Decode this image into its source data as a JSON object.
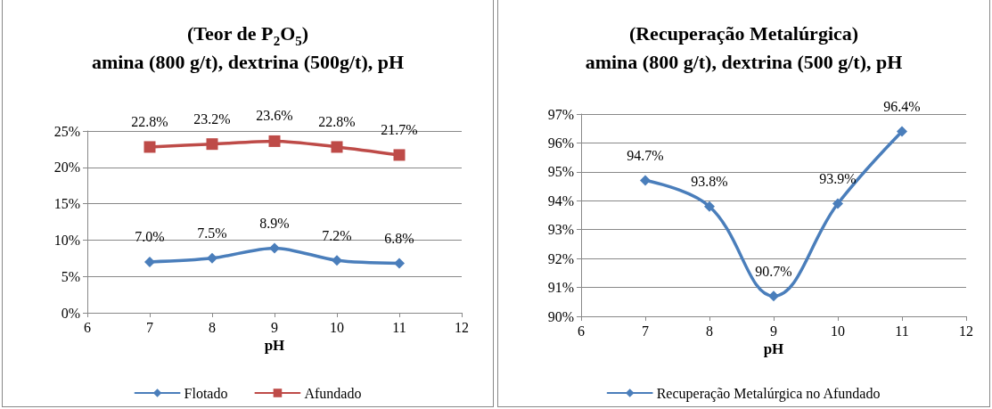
{
  "chart_data": [
    {
      "type": "line",
      "title": "(Teor de P$_{2}$O$_{5}$)\namina (800 g/t), dextrina (500g/t), pH",
      "xlabel": "pH",
      "x": [
        7,
        8,
        9,
        10,
        11
      ],
      "series": [
        {
          "name": "Flotado",
          "color": "#4a7ebb",
          "marker": "diamond",
          "values": [
            7.0,
            7.5,
            8.9,
            7.2,
            6.8
          ],
          "value_labels": [
            "7.0%",
            "7.5%",
            "8.9%",
            "7.2%",
            "6.8%"
          ]
        },
        {
          "name": "Afundado",
          "color": "#be4b48",
          "marker": "square",
          "values": [
            22.8,
            23.2,
            23.6,
            22.8,
            21.7
          ],
          "value_labels": [
            "22.8%",
            "23.2%",
            "23.6%",
            "22.8%",
            "21.7%"
          ]
        }
      ],
      "xlim": [
        6,
        12
      ],
      "xticks": [
        6,
        7,
        8,
        9,
        10,
        11,
        12
      ],
      "ylim": [
        0,
        25
      ],
      "yticks": [
        {
          "value": 0,
          "label": "0%"
        },
        {
          "value": 5,
          "label": "5%"
        },
        {
          "value": 10,
          "label": "10%"
        },
        {
          "value": 15,
          "label": "15%"
        },
        {
          "value": 20,
          "label": "20%"
        },
        {
          "value": 25,
          "label": "25%"
        }
      ],
      "grid": "y",
      "legend": "bottom",
      "line_style": "solid"
    },
    {
      "type": "line",
      "title": "(Recuperação Metalúrgica)\namina (800 g/t), dextrina (500 g/t), pH",
      "xlabel": "pH",
      "x": [
        7,
        8,
        9,
        10,
        11
      ],
      "series": [
        {
          "name": "Recuperação Metalúrgica no Afundado",
          "color": "#4a7ebb",
          "marker": "diamond",
          "values": [
            94.7,
            93.8,
            90.7,
            93.9,
            96.4
          ],
          "value_labels": [
            "94.7%",
            "93.8%",
            "90.7%",
            "93.9%",
            "96.4%"
          ]
        }
      ],
      "xlim": [
        6,
        12
      ],
      "xticks": [
        6,
        7,
        8,
        9,
        10,
        11,
        12
      ],
      "ylim": [
        90,
        97
      ],
      "yticks": [
        {
          "value": 90,
          "label": "90%"
        },
        {
          "value": 91,
          "label": "91%"
        },
        {
          "value": 92,
          "label": "92%"
        },
        {
          "value": 93,
          "label": "93%"
        },
        {
          "value": 94,
          "label": "94%"
        },
        {
          "value": 95,
          "label": "95%"
        },
        {
          "value": 96,
          "label": "96%"
        },
        {
          "value": 97,
          "label": "97%"
        }
      ],
      "grid": "y",
      "legend": "bottom",
      "line_style": "solid"
    }
  ]
}
